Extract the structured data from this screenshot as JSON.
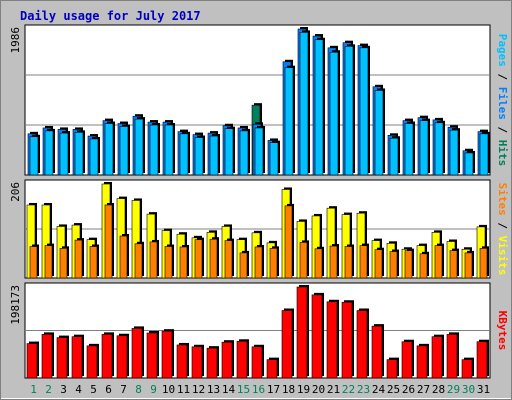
{
  "title": "Daily usage for July 2017",
  "colors": {
    "page_bg": "#c0c0c0",
    "plot_bg": "#ffffff",
    "title": "#0000c0",
    "hits": "#00c0ff",
    "files": "#0080ff",
    "pages": "#00c0ff",
    "hits_label": "#00805c",
    "visits": "#ffff00",
    "sites": "#ff8000",
    "kbytes": "#ff0000",
    "gridline": "#808080",
    "day_normal": "#000000",
    "day_weekend": "#00805c"
  },
  "chart_data": [
    {
      "type": "bar",
      "panel": "hits-files-pages",
      "series_labels": [
        "Pages",
        "Files",
        "Hits"
      ],
      "y_max_label": "1986",
      "ylim": [
        0,
        1986
      ],
      "x": [
        1,
        2,
        3,
        4,
        5,
        6,
        7,
        8,
        9,
        10,
        11,
        12,
        13,
        14,
        15,
        16,
        17,
        18,
        19,
        20,
        21,
        22,
        23,
        24,
        25,
        26,
        27,
        28,
        29,
        30,
        31
      ],
      "series": [
        {
          "name": "Hits",
          "values": [
            560,
            640,
            620,
            620,
            530,
            740,
            700,
            800,
            720,
            720,
            590,
            550,
            570,
            670,
            640,
            950,
            470,
            1540,
            1986,
            1890,
            1730,
            1800,
            1760,
            1200,
            540,
            740,
            780,
            750,
            650,
            330,
            590
          ]
        },
        {
          "name": "Files",
          "values": [
            560,
            640,
            620,
            620,
            530,
            740,
            700,
            800,
            720,
            720,
            590,
            550,
            570,
            670,
            640,
            690,
            470,
            1540,
            1986,
            1890,
            1730,
            1800,
            1760,
            1200,
            540,
            740,
            780,
            750,
            650,
            330,
            590
          ]
        },
        {
          "name": "Pages",
          "values": [
            520,
            600,
            570,
            580,
            490,
            700,
            660,
            760,
            680,
            680,
            560,
            510,
            530,
            630,
            600,
            640,
            440,
            1460,
            1940,
            1840,
            1670,
            1750,
            1730,
            1150,
            500,
            700,
            740,
            710,
            610,
            300,
            560
          ]
        }
      ]
    },
    {
      "type": "bar",
      "panel": "visits-sites",
      "series_labels": [
        "Sites",
        "Visits"
      ],
      "y_max_label": "206",
      "ylim": [
        0,
        206
      ],
      "x": [
        1,
        2,
        3,
        4,
        5,
        6,
        7,
        8,
        9,
        10,
        11,
        12,
        13,
        14,
        15,
        16,
        17,
        18,
        19,
        20,
        21,
        22,
        23,
        24,
        25,
        26,
        27,
        28,
        29,
        30,
        31
      ],
      "series": [
        {
          "name": "Visits",
          "values": [
            160,
            160,
            113,
            116,
            84,
            206,
            174,
            170,
            140,
            104,
            96,
            88,
            100,
            113,
            84,
            99,
            77,
            194,
            124,
            136,
            153,
            139,
            142,
            82,
            76,
            63,
            71,
            100,
            80,
            63,
            112
          ]
        },
        {
          "name": "Sites",
          "values": [
            69,
            71,
            65,
            83,
            69,
            160,
            92,
            75,
            79,
            69,
            68,
            84,
            85,
            82,
            55,
            68,
            65,
            158,
            78,
            64,
            70,
            69,
            71,
            62,
            58,
            60,
            53,
            71,
            60,
            55,
            65
          ]
        }
      ]
    },
    {
      "type": "bar",
      "panel": "kbytes",
      "series_labels": [
        "KBytes"
      ],
      "y_max_label": "198173",
      "ylim": [
        0,
        198173
      ],
      "x": [
        1,
        2,
        3,
        4,
        5,
        6,
        7,
        8,
        9,
        10,
        11,
        12,
        13,
        14,
        15,
        16,
        17,
        18,
        19,
        20,
        21,
        22,
        23,
        24,
        25,
        26,
        27,
        28,
        29,
        30,
        31
      ],
      "series": [
        {
          "name": "KBytes",
          "values": [
            75000,
            95000,
            88000,
            90000,
            70000,
            95000,
            92000,
            108000,
            98000,
            102000,
            72000,
            68000,
            65000,
            78000,
            80000,
            68000,
            40000,
            147000,
            198173,
            181000,
            166000,
            165000,
            147000,
            113000,
            40000,
            79000,
            70000,
            90000,
            95000,
            40000,
            79000
          ]
        }
      ]
    }
  ],
  "x_ticks": [
    "1",
    "2",
    "3",
    "4",
    "5",
    "6",
    "7",
    "8",
    "9",
    "10",
    "11",
    "12",
    "13",
    "14",
    "15",
    "16",
    "17",
    "18",
    "19",
    "20",
    "21",
    "22",
    "23",
    "24",
    "25",
    "26",
    "27",
    "28",
    "29",
    "30",
    "31"
  ],
  "weekend_days": [
    1,
    2,
    8,
    9,
    15,
    16,
    22,
    23,
    29,
    30
  ]
}
